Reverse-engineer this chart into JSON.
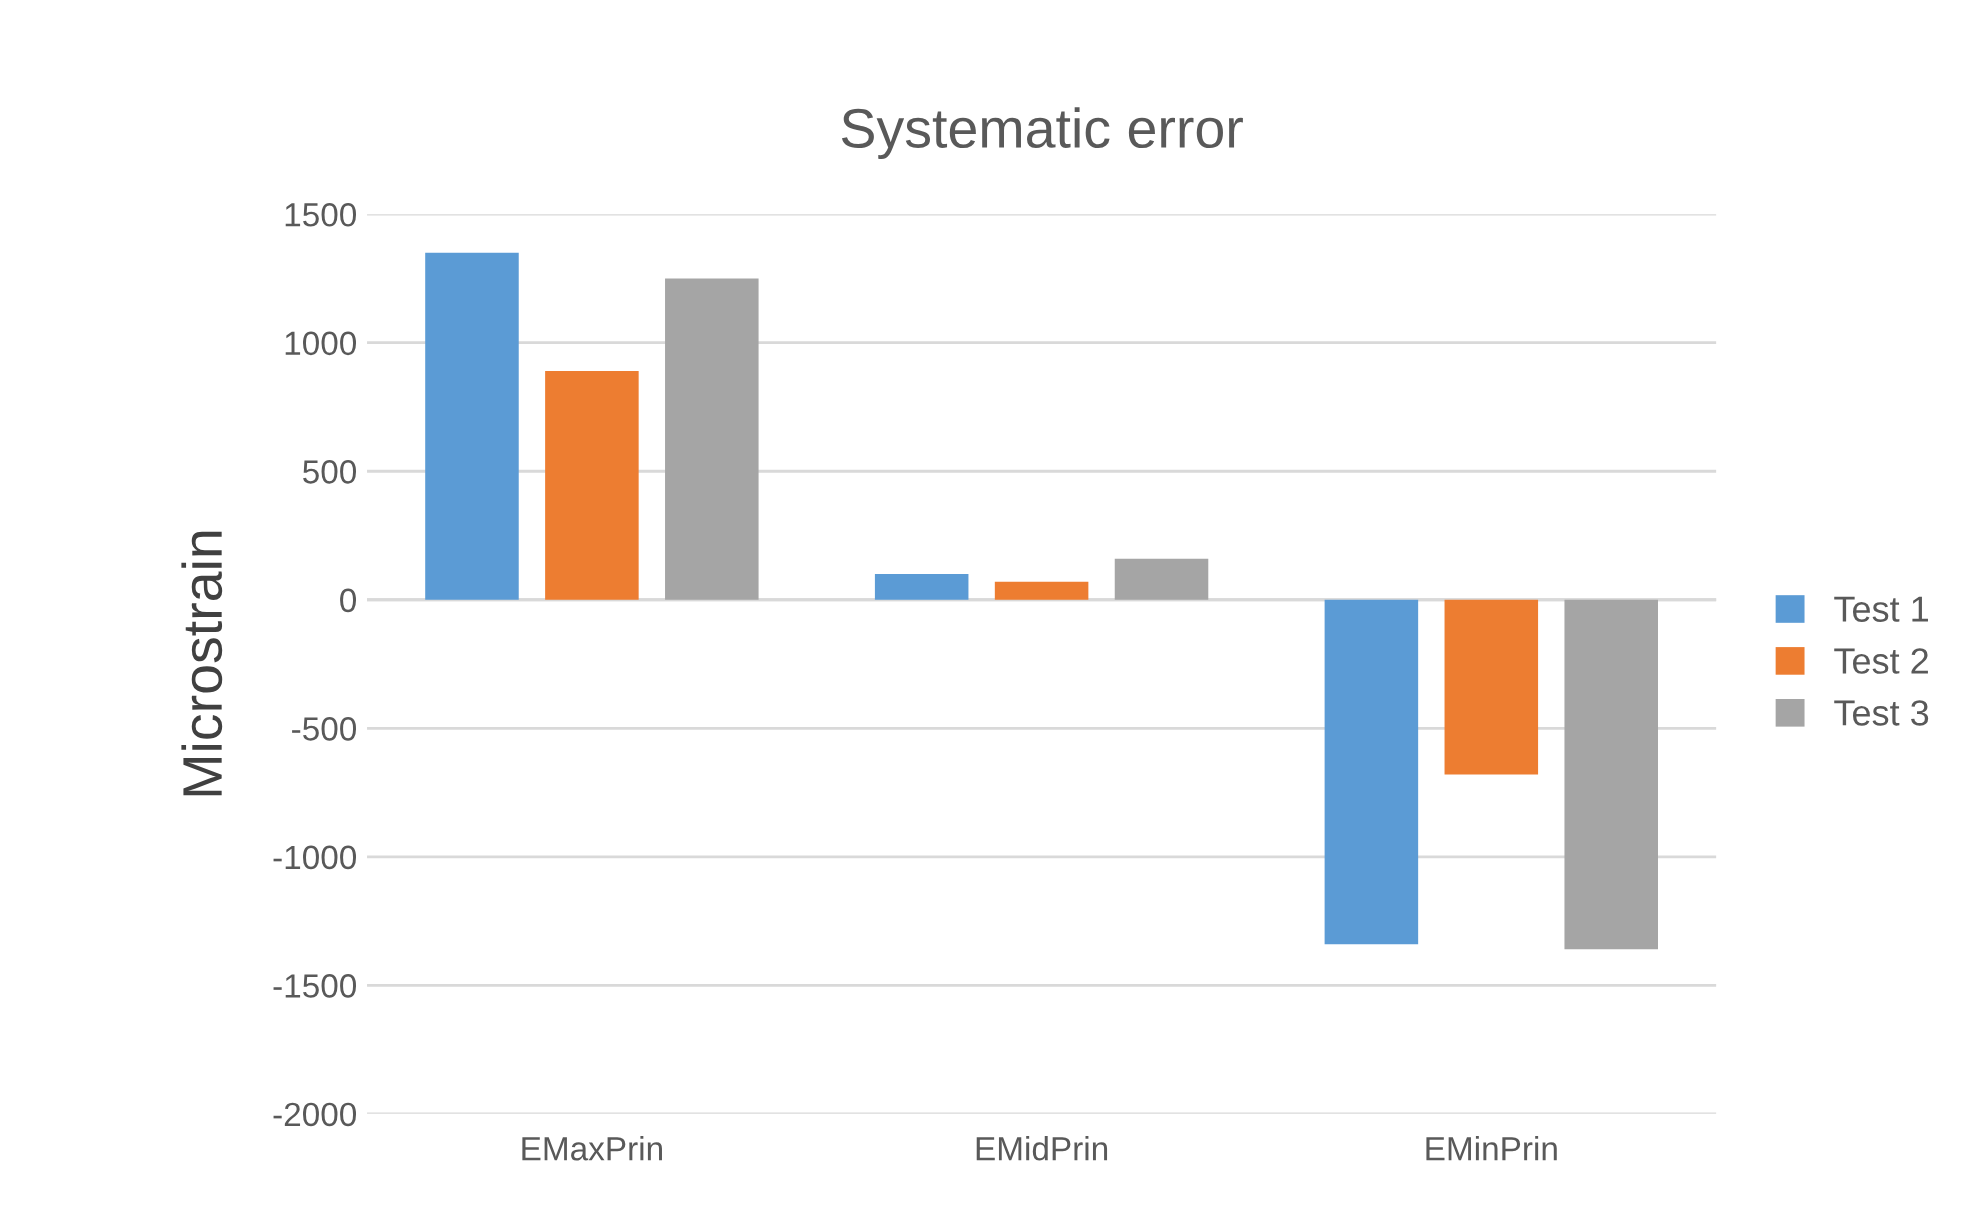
{
  "chart_data": {
    "type": "bar",
    "title": "Systematic error",
    "ylabel": "Microstrain",
    "categories": [
      "EMaxPrin",
      "EMidPrin",
      "EMinPrin"
    ],
    "series": [
      {
        "name": "Test 1",
        "color": "#5b9bd5",
        "values": [
          1350,
          100,
          -1340
        ]
      },
      {
        "name": "Test 2",
        "color": "#ed7d31",
        "values": [
          890,
          70,
          -680
        ]
      },
      {
        "name": "Test 3",
        "color": "#a5a5a5",
        "values": [
          1250,
          160,
          -1360
        ]
      }
    ],
    "ylim": [
      -2000,
      1500
    ],
    "yticks": [
      -2000,
      -1500,
      -1000,
      -500,
      0,
      500,
      1000,
      1500
    ],
    "grid": "y",
    "legend": "right"
  }
}
